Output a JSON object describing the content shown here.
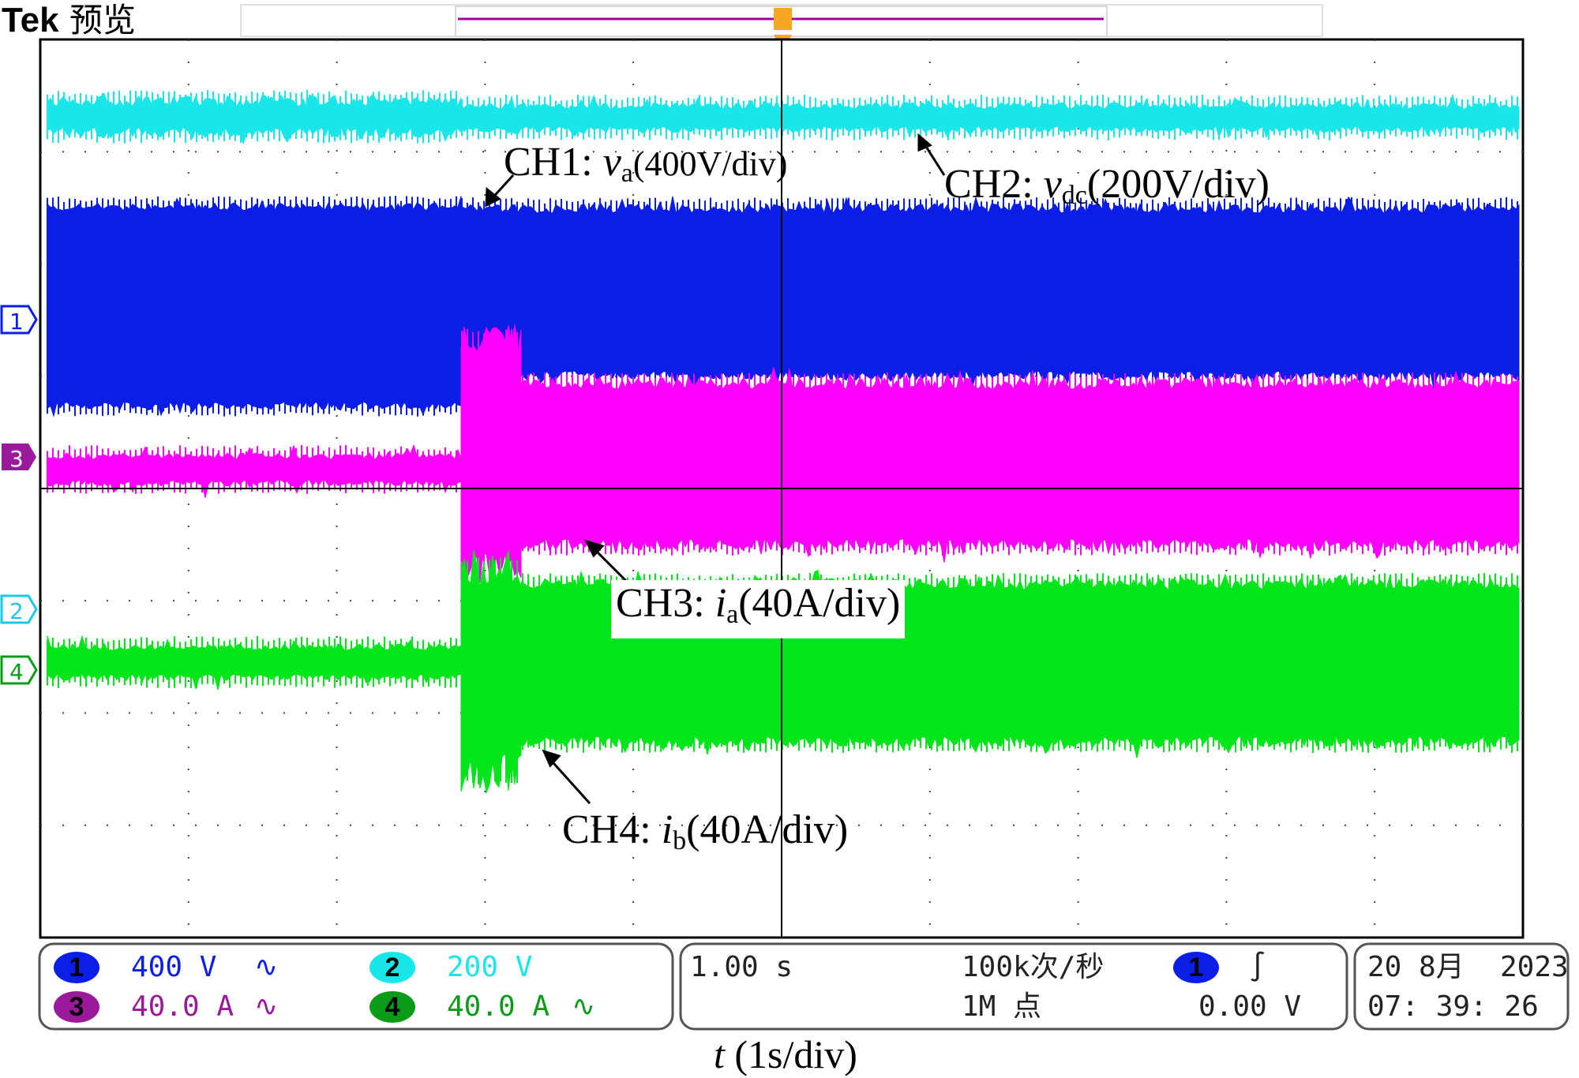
{
  "header": {
    "brand": "Tek",
    "mode": "预览"
  },
  "colors": {
    "ch1": "#0b1ee8",
    "ch2": "#19e6e8",
    "ch3": "#ff00ff",
    "ch4": "#00e61a",
    "ch3_badge": "#9b1a9b",
    "ch4_badge": "#0a9b18",
    "trigger": "#f5a623",
    "timebar": "#a000a0"
  },
  "channel_markers": [
    {
      "id": "ch1",
      "label": "1"
    },
    {
      "id": "ch3",
      "label": "3"
    },
    {
      "id": "ch2",
      "label": "2"
    },
    {
      "id": "ch4",
      "label": "4"
    }
  ],
  "trigger_marker": "T",
  "annotations": {
    "ch1": {
      "prefix": "CH1:  ",
      "symbol": "v",
      "sub": "a",
      "scale": "(400V/div)"
    },
    "ch2": {
      "prefix": "CH2: ",
      "symbol": "v",
      "sub": "dc",
      "scale": "(200V/div)"
    },
    "ch3": {
      "prefix": "CH3: ",
      "symbol": "i",
      "sub": "a",
      "scale": "(40A/div)"
    },
    "ch4": {
      "prefix": "CH4: ",
      "symbol": "i",
      "sub": "b",
      "scale": "(40A/div)"
    }
  },
  "status": {
    "ch1": {
      "num": "1",
      "scale": "400 V",
      "coupling_icon": "ac-coupling-icon",
      "coupling": "∿"
    },
    "ch2": {
      "num": "2",
      "scale": "200 V",
      "coupling_icon": "none",
      "coupling": ""
    },
    "ch3": {
      "num": "3",
      "scale": "40.0 A",
      "coupling_icon": "ac-coupling-icon",
      "coupling": "∿"
    },
    "ch4": {
      "num": "4",
      "scale": "40.0 A",
      "coupling_icon": "ac-coupling-icon",
      "coupling": "∿"
    },
    "timebase": "1.00 s",
    "sample_rate": "100k次/秒",
    "record_length": "1M 点",
    "trigger_source": "1",
    "trigger_slope": "∫",
    "trigger_level": "0.00 V",
    "date": "20 8月",
    "year": "2023",
    "time": "07: 39: 26"
  },
  "x_caption": {
    "symbol": "t",
    "text": " (1s/div)"
  }
}
